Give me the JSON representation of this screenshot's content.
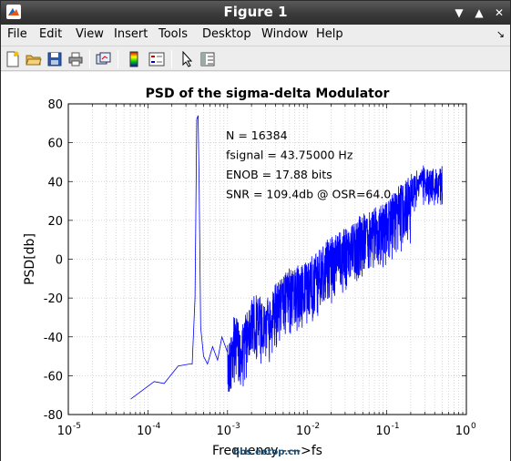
{
  "window": {
    "title": "Figure 1"
  },
  "menubar": {
    "items": [
      {
        "label": "File"
      },
      {
        "label": "Edit"
      },
      {
        "label": "View"
      },
      {
        "label": "Insert"
      },
      {
        "label": "Tools"
      },
      {
        "label": "Desktop"
      },
      {
        "label": "Window"
      },
      {
        "label": "Help"
      }
    ]
  },
  "toolbar": {
    "buttons": [
      "new-figure-icon",
      "open-file-icon",
      "save-icon",
      "print-icon",
      "link-plot-icon",
      "colorbar-icon",
      "legend-icon",
      "pointer-icon",
      "property-editor-icon"
    ]
  },
  "watermark": "bbs.eetop.cn",
  "chart_data": {
    "type": "line",
    "title": "PSD of the sigma-delta Modulator",
    "xlabel": "Frequency ---->fs",
    "ylabel": "PSD[db]",
    "xscale": "log",
    "xlim": [
      1e-05,
      1
    ],
    "ylim": [
      -80,
      80
    ],
    "xticks": [
      1e-05,
      0.0001,
      0.001,
      0.01,
      0.1,
      1
    ],
    "xtick_labels": [
      {
        "base": "10",
        "exp": "-5"
      },
      {
        "base": "10",
        "exp": "-4"
      },
      {
        "base": "10",
        "exp": "-3"
      },
      {
        "base": "10",
        "exp": "-2"
      },
      {
        "base": "10",
        "exp": "-1"
      },
      {
        "base": "10",
        "exp": "0"
      }
    ],
    "yticks": [
      -80,
      -60,
      -40,
      -20,
      0,
      20,
      40,
      60,
      80
    ],
    "ytick_labels": [
      "-80",
      "-60",
      "-40",
      "-20",
      "0",
      "20",
      "40",
      "60",
      "80"
    ],
    "grid": true,
    "line_color": "#0000ff",
    "annotations": [
      {
        "text": "N = 16384"
      },
      {
        "text": "fsignal = 43.75000 Hz"
      },
      {
        "text": "ENOB = 17.88 bits"
      },
      {
        "text": "SNR = 109.4db @ OSR=64.0"
      }
    ],
    "series": [
      {
        "values": [
          [
            6.1e-05,
            -72
          ],
          [
            0.00012,
            -63
          ],
          [
            0.00016,
            -64
          ],
          [
            0.00024,
            -55
          ],
          [
            0.00033,
            -54
          ],
          [
            0.00036,
            -54
          ],
          [
            0.00039,
            -20
          ],
          [
            0.00041,
            72
          ],
          [
            0.000427,
            74
          ],
          [
            0.00044,
            40
          ],
          [
            0.00046,
            -35
          ],
          [
            0.0005,
            -50
          ],
          [
            0.00056,
            -54
          ],
          [
            0.00065,
            -45
          ],
          [
            0.00075,
            -52
          ],
          [
            0.00085,
            -40
          ],
          [
            0.001,
            -48
          ],
          [
            0.0012,
            -32
          ],
          [
            0.0015,
            -38
          ],
          [
            0.002,
            -20
          ],
          [
            0.003,
            -24
          ],
          [
            0.005,
            -10
          ],
          [
            0.01,
            -4
          ],
          [
            0.02,
            8
          ],
          [
            0.05,
            20
          ],
          [
            0.1,
            28
          ],
          [
            0.2,
            40
          ],
          [
            0.3,
            45
          ],
          [
            0.5,
            45
          ]
        ]
      }
    ]
  }
}
